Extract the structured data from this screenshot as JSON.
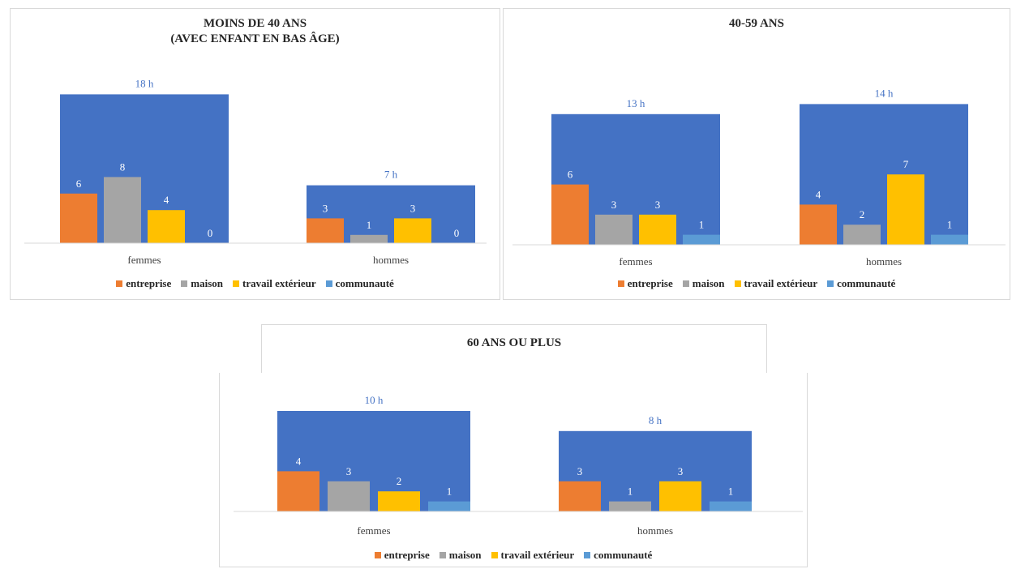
{
  "colors": {
    "total": "#4472C4",
    "entreprise": "#ED7D31",
    "maison": "#A5A5A5",
    "travail": "#FFC000",
    "communaute": "#5B9BD5",
    "total_label": "#4472C4",
    "bar_label": "#ffffff"
  },
  "legend": [
    {
      "key": "entreprise",
      "label": "entreprise"
    },
    {
      "key": "maison",
      "label": "maison"
    },
    {
      "key": "travail",
      "label": "travail extérieur"
    },
    {
      "key": "communaute",
      "label": "communauté"
    }
  ],
  "chart_data": [
    {
      "type": "bar",
      "title": "MOINS DE 40 ANS\n(AVEC ENFANT EN BAS ÂGE)",
      "categories": [
        "femmes",
        "hommes"
      ],
      "total": {
        "values": [
          18,
          7
        ],
        "labels": [
          "18 h",
          "7 h"
        ]
      },
      "series": [
        {
          "name": "entreprise",
          "values": [
            6,
            3
          ]
        },
        {
          "name": "maison",
          "values": [
            8,
            1
          ]
        },
        {
          "name": "travail extérieur",
          "values": [
            4,
            3
          ]
        },
        {
          "name": "communauté",
          "values": [
            0,
            0
          ]
        }
      ],
      "ylim": [
        0,
        18
      ]
    },
    {
      "type": "bar",
      "title": "40-59 ANS",
      "categories": [
        "femmes",
        "hommes"
      ],
      "total": {
        "values": [
          13,
          14
        ],
        "labels": [
          "13 h",
          "14 h"
        ]
      },
      "series": [
        {
          "name": "entreprise",
          "values": [
            6,
            4
          ]
        },
        {
          "name": "maison",
          "values": [
            3,
            2
          ]
        },
        {
          "name": "travail extérieur",
          "values": [
            3,
            7
          ]
        },
        {
          "name": "communauté",
          "values": [
            1,
            1
          ]
        }
      ],
      "ylim": [
        0,
        14
      ]
    },
    {
      "type": "bar",
      "title": "60 ANS OU PLUS",
      "categories": [
        "femmes",
        "hommes"
      ],
      "total": {
        "values": [
          10,
          8
        ],
        "labels": [
          "10 h",
          "8 h"
        ]
      },
      "series": [
        {
          "name": "entreprise",
          "values": [
            4,
            3
          ]
        },
        {
          "name": "maison",
          "values": [
            3,
            1
          ]
        },
        {
          "name": "travail extérieur",
          "values": [
            2,
            3
          ]
        },
        {
          "name": "communauté",
          "values": [
            1,
            1
          ]
        }
      ],
      "ylim": [
        0,
        10
      ]
    }
  ]
}
